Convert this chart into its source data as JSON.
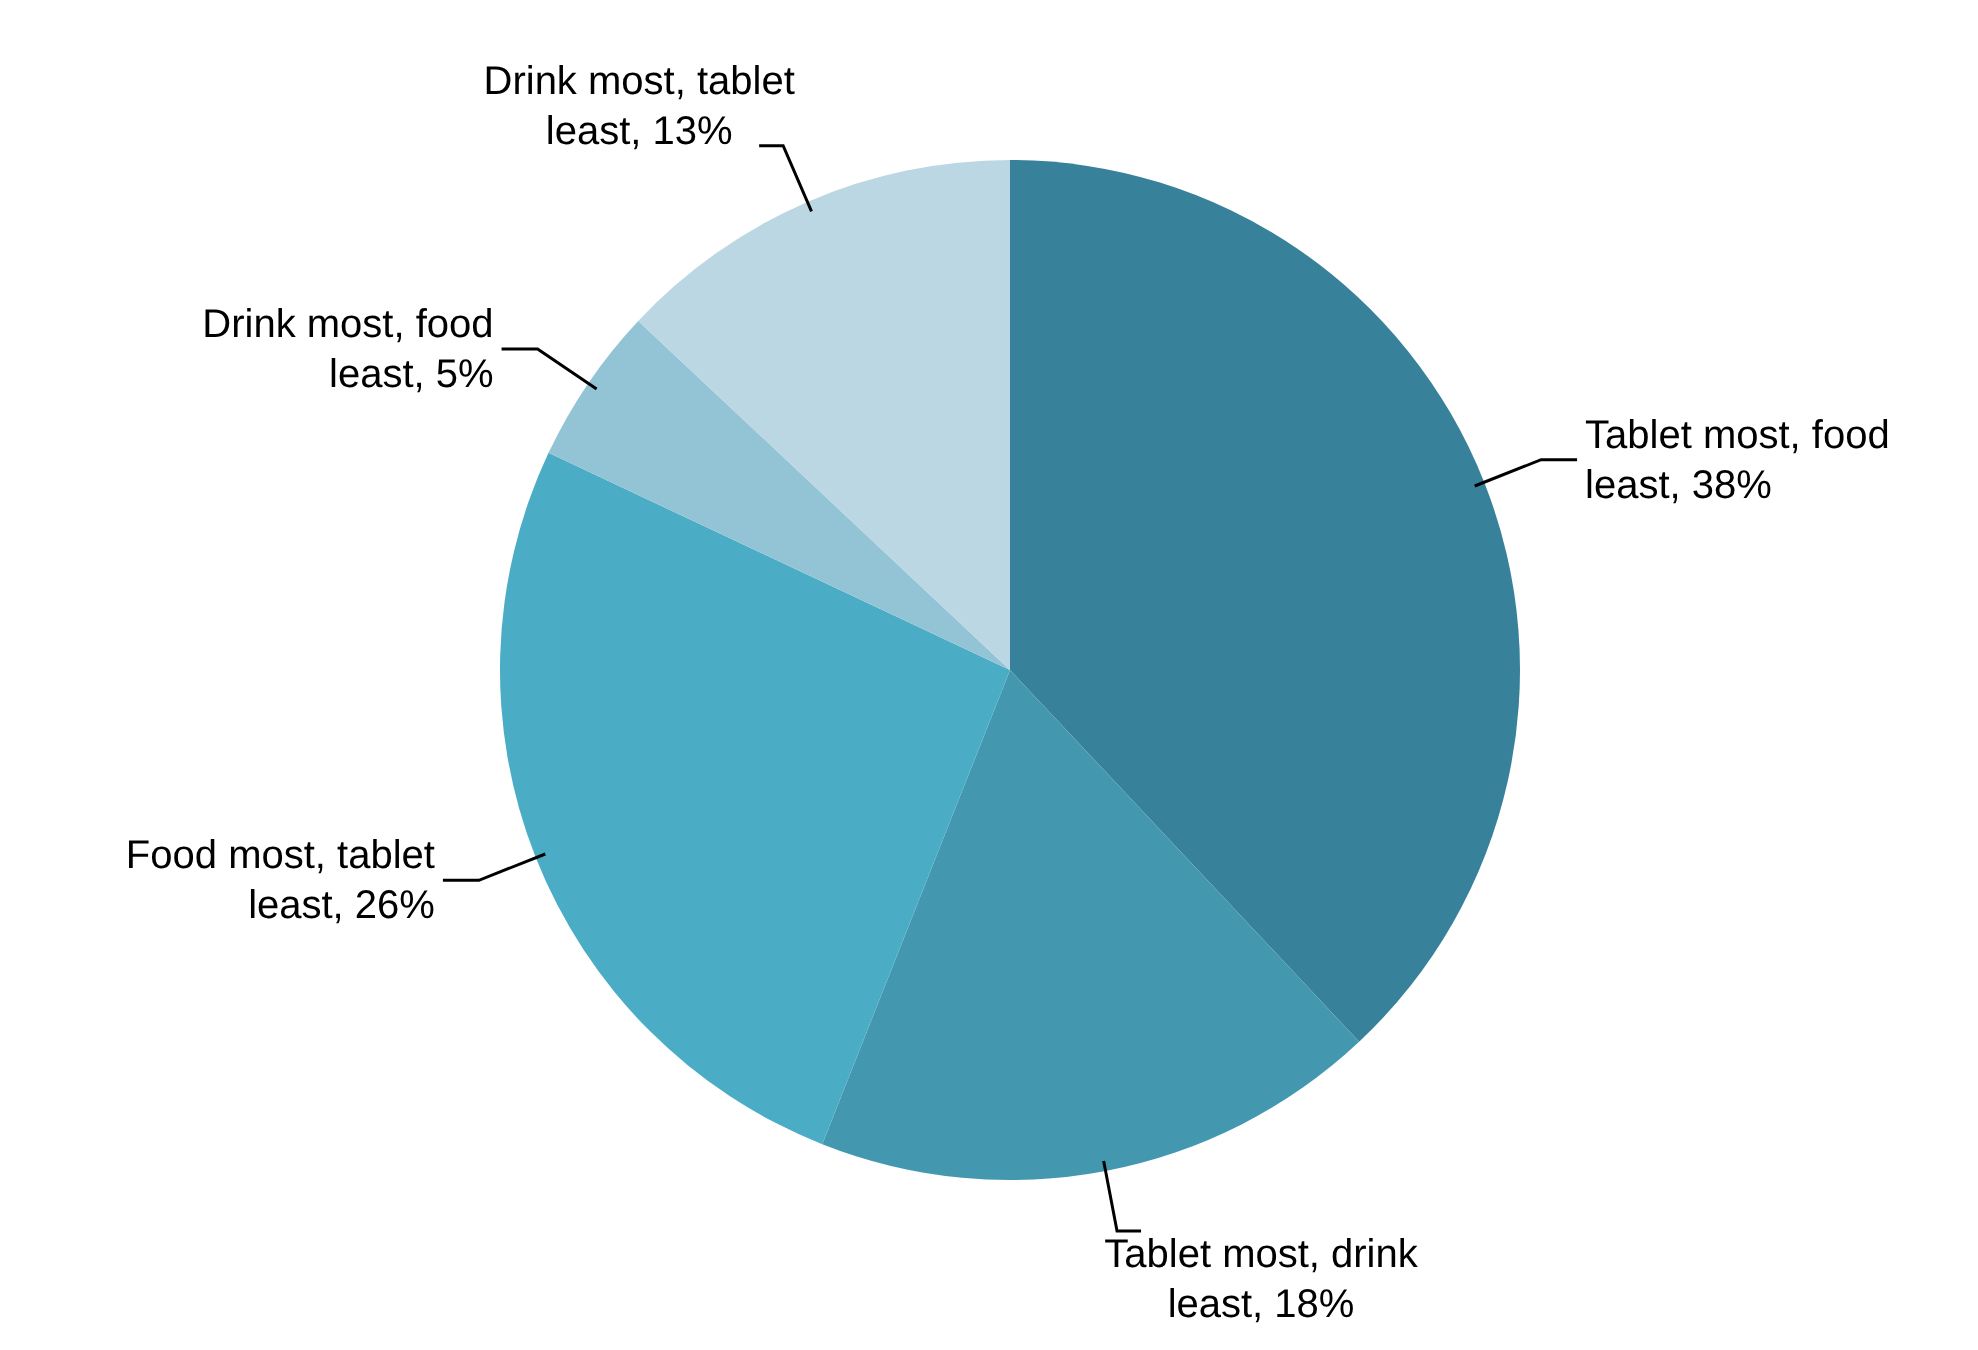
{
  "chart_data": {
    "type": "pie",
    "categories": [
      "Tablet most, food least",
      "Tablet most, drink least",
      "Food most, tablet least",
      "Drink most, food least",
      "Drink most, tablet least"
    ],
    "values": [
      38,
      18,
      26,
      5,
      13
    ],
    "colors": [
      "#37819a",
      "#4398b0",
      "#4bacc6",
      "#93c4d6",
      "#bbd7e3"
    ],
    "value_labels": [
      "38%",
      "18%",
      "26%",
      "5%",
      "13%"
    ]
  }
}
